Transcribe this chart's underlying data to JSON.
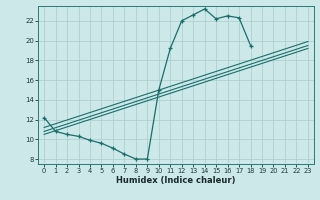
{
  "xlabel": "Humidex (Indice chaleur)",
  "bg_color": "#cce8e8",
  "grid_color": "#aacccc",
  "line_color": "#1a6e6a",
  "xlim": [
    -0.5,
    23.5
  ],
  "ylim": [
    7.5,
    23.5
  ],
  "xticks": [
    0,
    1,
    2,
    3,
    4,
    5,
    6,
    7,
    8,
    9,
    10,
    11,
    12,
    13,
    14,
    15,
    16,
    17,
    18,
    19,
    20,
    21,
    22,
    23
  ],
  "yticks": [
    8,
    10,
    12,
    14,
    16,
    18,
    20,
    22
  ],
  "curve_x": [
    0,
    1,
    2,
    3,
    4,
    5,
    6,
    7,
    8,
    9,
    10,
    11,
    12,
    13,
    14,
    15,
    16,
    17,
    18
  ],
  "curve_y": [
    12.2,
    10.8,
    10.5,
    10.3,
    9.9,
    9.6,
    9.1,
    8.5,
    8.0,
    8.0,
    15.0,
    19.2,
    22.0,
    22.6,
    23.2,
    22.2,
    22.5,
    22.3,
    19.5
  ],
  "straight_lines": [
    {
      "x": [
        0,
        23
      ],
      "y": [
        10.5,
        19.2
      ]
    },
    {
      "x": [
        0,
        23
      ],
      "y": [
        10.8,
        19.5
      ]
    },
    {
      "x": [
        0,
        23
      ],
      "y": [
        11.2,
        19.9
      ]
    }
  ]
}
